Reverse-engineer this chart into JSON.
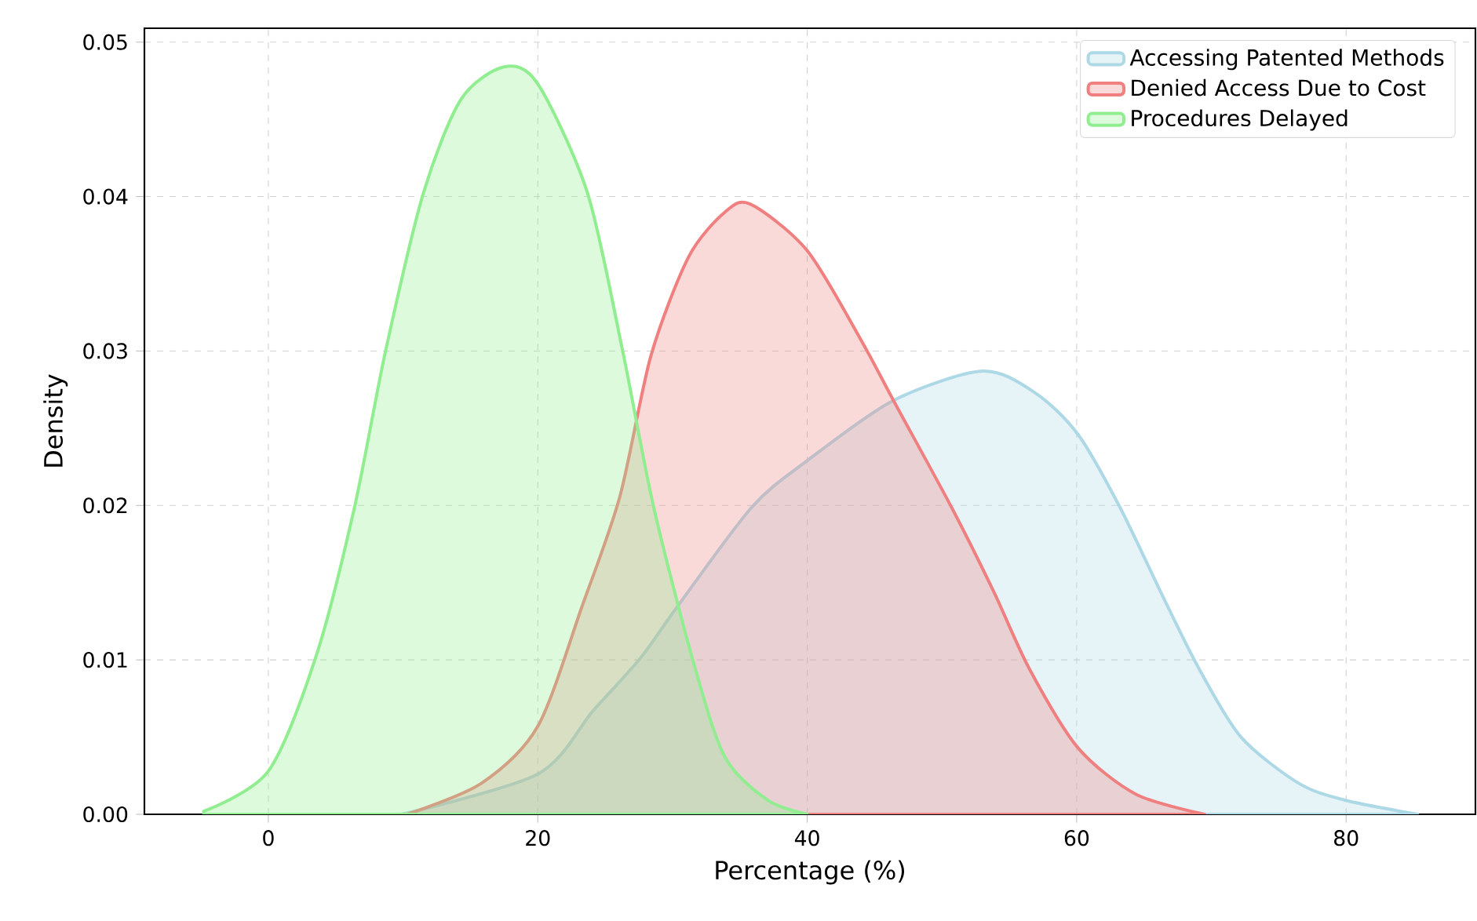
{
  "chart_data": {
    "type": "area",
    "xlabel": "Percentage (%)",
    "ylabel": "Density",
    "series": [
      {
        "name": "Accessing Patented Methods",
        "color": "#add8e6",
        "x": [
          9.9,
          20,
          24.1,
          27.6,
          30.4,
          35.9,
          40,
          46.4,
          53,
          56.9,
          60.1,
          63.2,
          66.4,
          69.1,
          72.2,
          76.5,
          80,
          85.3
        ],
        "values": [
          0,
          0.0026,
          0.0067,
          0.0101,
          0.0135,
          0.0199,
          0.0229,
          0.0268,
          0.0287,
          0.0273,
          0.0246,
          0.0199,
          0.0141,
          0.0094,
          0.005,
          0.002,
          0.0009,
          0
        ]
      },
      {
        "name": "Denied Access Due to Cost",
        "color": "#f08080",
        "x": [
          10.3,
          15.8,
          20,
          23.3,
          26.1,
          28.4,
          31.2,
          33.9,
          35.8,
          40,
          44,
          46.4,
          50.7,
          53.8,
          56.5,
          60.1,
          64.4,
          69.5
        ],
        "values": [
          0,
          0.002,
          0.0057,
          0.0135,
          0.0206,
          0.0297,
          0.0361,
          0.039,
          0.0395,
          0.0365,
          0.0307,
          0.0268,
          0.0199,
          0.0145,
          0.0094,
          0.0043,
          0.0013,
          0
        ]
      },
      {
        "name": "Procedures Delayed",
        "color": "#90ee90",
        "x": [
          -4.8,
          0,
          3.6,
          6.4,
          8.7,
          11.5,
          14.3,
          17.5,
          20,
          23.7,
          26.3,
          28.6,
          31.6,
          33.9,
          37.1,
          40
        ],
        "values": [
          0.0002,
          0.0028,
          0.0104,
          0.0199,
          0.03,
          0.0402,
          0.0463,
          0.0484,
          0.0473,
          0.0402,
          0.03,
          0.0199,
          0.0097,
          0.0037,
          0.0009,
          0
        ]
      }
    ],
    "xlim": [
      -9.2,
      89.6
    ],
    "ylim": [
      0,
      0.0509
    ],
    "xticks": [
      0,
      20,
      40,
      60,
      80
    ],
    "yticks": [
      {
        "value": 0,
        "label": "0.00"
      },
      {
        "value": 0.01,
        "label": "0.01"
      },
      {
        "value": 0.02,
        "label": "0.02"
      },
      {
        "value": 0.03,
        "label": "0.03"
      },
      {
        "value": 0.04,
        "label": "0.04"
      },
      {
        "value": 0.05,
        "label": "0.05"
      }
    ],
    "grid": true,
    "legend": "top right"
  }
}
